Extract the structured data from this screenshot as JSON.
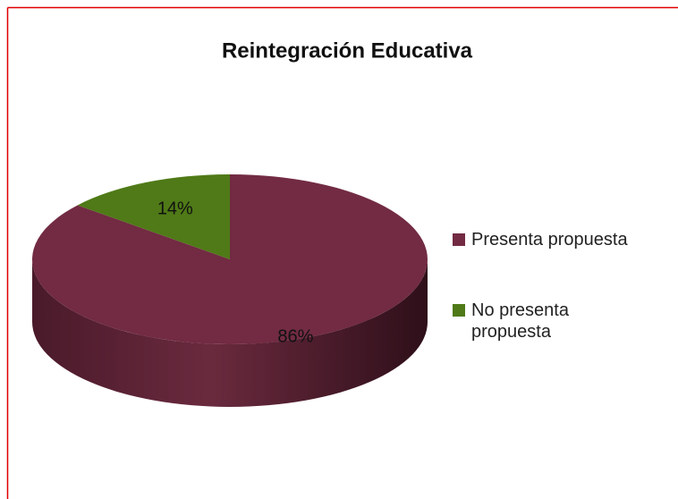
{
  "chart_data": {
    "type": "pie3d",
    "title": "Reintegración Educativa",
    "categories": [
      "Presenta propuesta",
      "No presenta propuesta"
    ],
    "values": [
      86,
      14
    ],
    "value_labels": [
      "86%",
      "14%"
    ],
    "colors": [
      "#722b42",
      "#4f7a17"
    ],
    "legend": "right"
  }
}
